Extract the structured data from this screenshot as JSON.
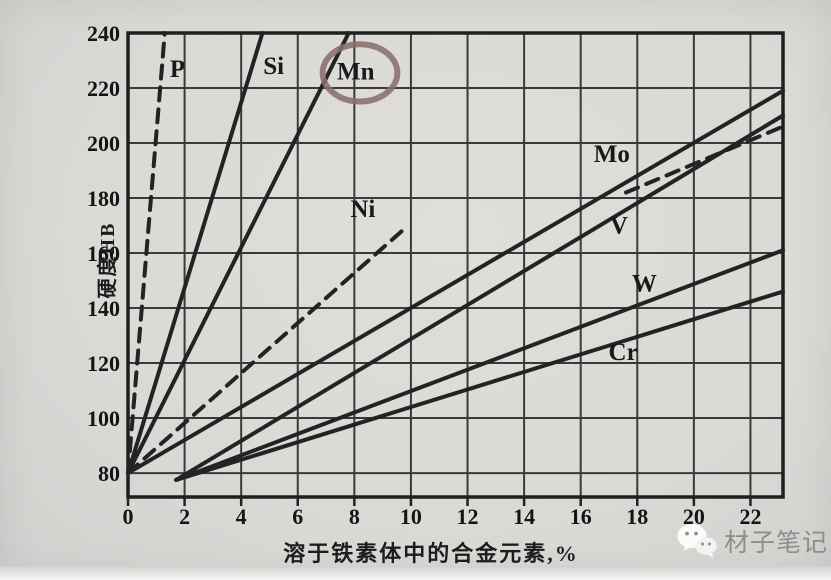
{
  "page": {
    "background": "#dbd9d6",
    "ink_color": "#232323",
    "grid_color": "#3a3a3a"
  },
  "watermark": {
    "icon": "wechat-icon",
    "text": "材子笔记",
    "color": "#8e8e8c"
  },
  "chart_data": {
    "type": "line",
    "title": "",
    "xlabel": "溶于铁素体中的合金元素,%",
    "ylabel": "硬度HB",
    "xlim": [
      0,
      23.15
    ],
    "ylim": [
      71.3,
      240
    ],
    "xticks": [
      0,
      2,
      4,
      6,
      8,
      10,
      12,
      14,
      16,
      18,
      20,
      22
    ],
    "yticks": [
      80,
      100,
      120,
      140,
      160,
      180,
      200,
      220,
      240
    ],
    "grid": true,
    "legend_position": "labels-on-lines",
    "series": [
      {
        "name": "P",
        "style": "dashed",
        "segments": [
          [
            [
              0,
              80
            ],
            [
              1.3,
              240
            ]
          ]
        ],
        "label_pos": [
          1.75,
          227
        ]
      },
      {
        "name": "Si",
        "style": "solid",
        "segments": [
          [
            [
              0,
              80
            ],
            [
              4.75,
              240
            ]
          ]
        ],
        "label_pos": [
          5.15,
          228
        ]
      },
      {
        "name": "Mn",
        "style": "solid",
        "segments": [
          [
            [
              0,
              80
            ],
            [
              7.8,
              240
            ]
          ]
        ],
        "label_pos": [
          8.05,
          226
        ],
        "circled": true
      },
      {
        "name": "Ni",
        "style": "dashed",
        "segments": [
          [
            [
              0,
              80
            ],
            [
              9.9,
              170
            ]
          ],
          [
            [
              17.6,
              182
            ],
            [
              23.15,
              206
            ]
          ]
        ],
        "label_pos": [
          8.3,
          176
        ]
      },
      {
        "name": "Mo",
        "style": "solid",
        "segments": [
          [
            [
              0,
              80
            ],
            [
              23.15,
              219
            ]
          ]
        ],
        "label_pos": [
          17.1,
          196
        ]
      },
      {
        "name": "V",
        "style": "solid",
        "segments": [
          [
            [
              1.7,
              77.5
            ],
            [
              23.15,
              210
            ]
          ]
        ],
        "label_pos": [
          17.35,
          170
        ]
      },
      {
        "name": "W",
        "style": "solid",
        "segments": [
          [
            [
              1.7,
              77.5
            ],
            [
              23.15,
              161
            ]
          ]
        ],
        "label_pos": [
          18.25,
          149
        ]
      },
      {
        "name": "Cr",
        "style": "solid",
        "segments": [
          [
            [
              1.7,
              77.5
            ],
            [
              23.15,
              146
            ]
          ]
        ],
        "label_pos": [
          17.5,
          124
        ]
      }
    ],
    "annotation": {
      "type": "ellipse",
      "target": "Mn",
      "center": [
        8.2,
        225.5
      ],
      "rx": 1.32,
      "ry": 10.4,
      "color": "#8a6e6e"
    }
  }
}
